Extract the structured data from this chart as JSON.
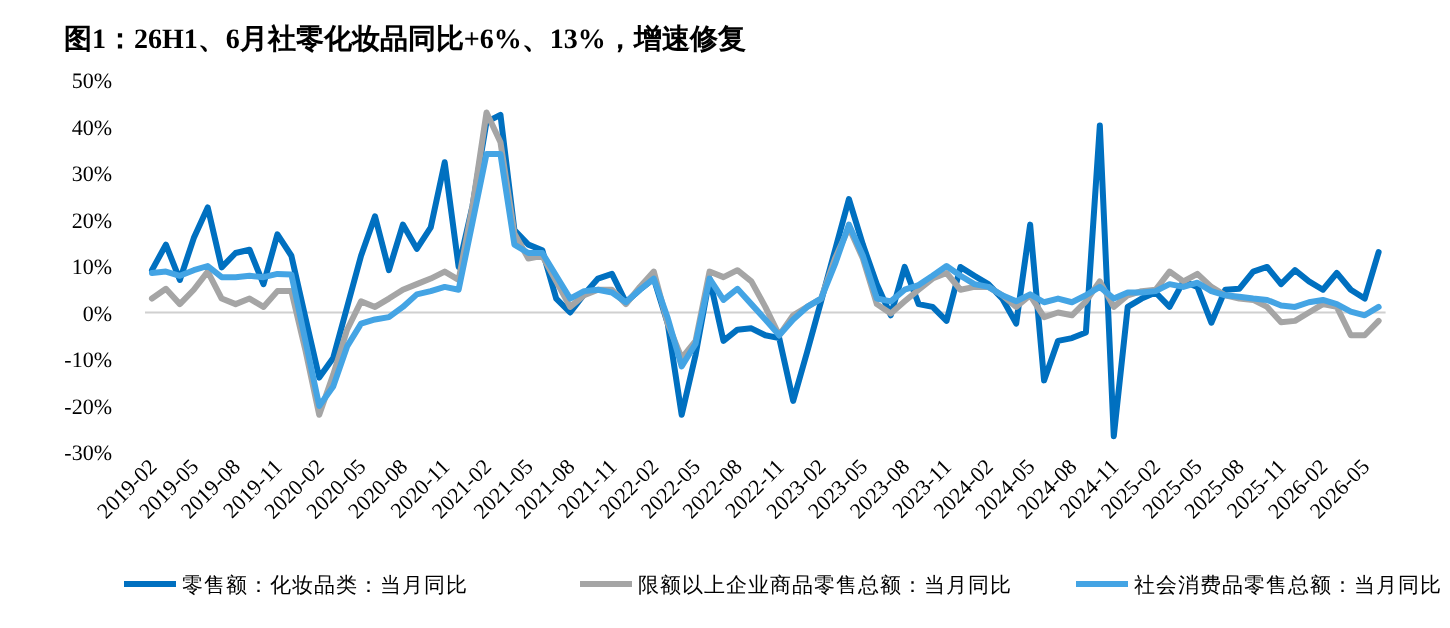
{
  "chart_data": {
    "type": "line",
    "title": "图1：26H1、6月社零化妆品同比+6%、13%，增速修复",
    "categories": [
      "2019-02",
      null,
      null,
      "2019-05",
      null,
      null,
      "2019-08",
      null,
      null,
      "2019-11",
      null,
      null,
      "2020-02",
      null,
      null,
      "2020-05",
      null,
      null,
      "2020-08",
      null,
      null,
      "2020-11",
      null,
      null,
      "2021-02",
      null,
      null,
      "2021-05",
      null,
      null,
      "2021-08",
      null,
      null,
      "2021-11",
      null,
      null,
      "2022-02",
      null,
      null,
      "2022-05",
      null,
      null,
      "2022-08",
      null,
      null,
      "2022-11",
      null,
      null,
      "2023-02",
      null,
      null,
      "2023-05",
      null,
      null,
      "2023-08",
      null,
      null,
      "2023-11",
      null,
      null,
      "2024-02",
      null,
      null,
      "2024-05",
      null,
      null,
      "2024-08",
      null,
      null,
      "2024-11",
      null,
      null,
      "2025-02",
      null,
      null,
      "2025-05",
      null,
      null,
      "2025-08",
      null,
      null,
      "2025-11",
      null,
      null,
      "2026-02",
      null,
      null,
      "2026-05",
      null
    ],
    "series": [
      {
        "name": "零售额：化妆品类：当月同比",
        "color": "#0070c0",
        "values": [
          9.1,
          14.6,
          7,
          16,
          22.6,
          9.7,
          12.8,
          13.5,
          6.1,
          16.8,
          12.2,
          -1,
          -14,
          -9.8,
          1.2,
          12.2,
          20.7,
          9.1,
          18.9,
          13.7,
          18.3,
          32.3,
          9.8,
          23,
          41,
          42.5,
          17.7,
          14.6,
          13.4,
          3,
          0,
          3.9,
          7.3,
          8.3,
          2.2,
          4.9,
          7.3,
          -2.4,
          -22,
          -9.1,
          7.3,
          -6.1,
          -3.7,
          -3.4,
          -4.9,
          -5.5,
          -19,
          -8.5,
          2.4,
          13.4,
          24.4,
          14.6,
          6.1,
          -0.6,
          9.8,
          1.8,
          1.2,
          -1.8,
          9.8,
          7.9,
          6.1,
          3,
          -2.4,
          18.9,
          -14.6,
          -6.1,
          -5.5,
          -4.3,
          40.2,
          -26.6,
          1.2,
          3,
          4.3,
          1.2,
          6.7,
          5.5,
          -2.2,
          4.9,
          5.1,
          8.8,
          9.8,
          6.1,
          9.1,
          6.7,
          4.9,
          8.5,
          4.9,
          3,
          13
        ]
      },
      {
        "name": "限额以上企业商品零售总额：当月同比",
        "color": "#a5a5a5",
        "values": [
          3,
          5.1,
          1.8,
          4.9,
          8.8,
          3,
          1.8,
          3,
          1.2,
          4.6,
          4.6,
          -8,
          -22,
          -13.4,
          -3.7,
          2.4,
          1.2,
          3,
          4.9,
          6.1,
          7.3,
          8.8,
          7,
          23,
          43,
          36.6,
          17,
          11.6,
          12.2,
          6.7,
          1.2,
          3.7,
          4.9,
          4.9,
          1.8,
          5.5,
          8.8,
          -2.4,
          -9.8,
          -6.1,
          8.8,
          7.6,
          9.1,
          6.7,
          1.2,
          -4.9,
          -0.6,
          1.2,
          3,
          11.6,
          18.3,
          11.6,
          1.8,
          -0.2,
          2.4,
          4.9,
          7.3,
          8.5,
          4.9,
          5.5,
          5.5,
          3.7,
          1.2,
          3.7,
          -1,
          0,
          -0.6,
          2.4,
          6.7,
          1.2,
          3.7,
          4.6,
          4.9,
          8.8,
          6.7,
          8.3,
          5.5,
          3.7,
          3,
          2.7,
          1.2,
          -2.1,
          -1.8,
          0,
          1.8,
          1.2,
          -4.9,
          -4.9,
          -1.8
        ]
      },
      {
        "name": "社会消费品零售总额：当月同比",
        "color": "#44a4e4",
        "values": [
          8.5,
          8.8,
          7.9,
          9.1,
          10,
          7.6,
          7.6,
          7.9,
          7.6,
          8.3,
          8.2,
          -6,
          -20.1,
          -15.9,
          -7.3,
          -2.4,
          -1.5,
          -1,
          1.2,
          3.9,
          4.6,
          5.5,
          4.9,
          19.5,
          34.1,
          34.1,
          14.6,
          12.8,
          12.8,
          7.9,
          3,
          4.6,
          4.9,
          4.3,
          2.2,
          4.9,
          7.3,
          -1.2,
          -11.6,
          -6.7,
          7.3,
          2.7,
          5.1,
          1.8,
          -1.5,
          -4.9,
          -1.5,
          1.2,
          3,
          10.4,
          18.9,
          12.2,
          3,
          2.4,
          4.9,
          5.9,
          7.9,
          10,
          7.9,
          6.1,
          5.5,
          3.7,
          2.4,
          3.9,
          2.2,
          3,
          2.2,
          3.7,
          5.5,
          3,
          4.3,
          4.3,
          4.6,
          6.1,
          5.5,
          6.4,
          4.6,
          3.7,
          3.4,
          3,
          2.7,
          1.5,
          1.2,
          2.2,
          2.7,
          1.8,
          0.2,
          -0.6,
          1.2
        ]
      }
    ],
    "ylim": [
      -30,
      50
    ],
    "yticks": [
      {
        "value": -30,
        "label": "-30%"
      },
      {
        "value": -20,
        "label": "-20%"
      },
      {
        "value": -10,
        "label": "-10%"
      },
      {
        "value": 0,
        "label": "0%"
      },
      {
        "value": 10,
        "label": "10%"
      },
      {
        "value": 20,
        "label": "20%"
      },
      {
        "value": 30,
        "label": "30%"
      },
      {
        "value": 40,
        "label": "40%"
      },
      {
        "value": 50,
        "label": "50%"
      }
    ],
    "legend": "bottom",
    "line_style": "solid",
    "marker": "none"
  }
}
